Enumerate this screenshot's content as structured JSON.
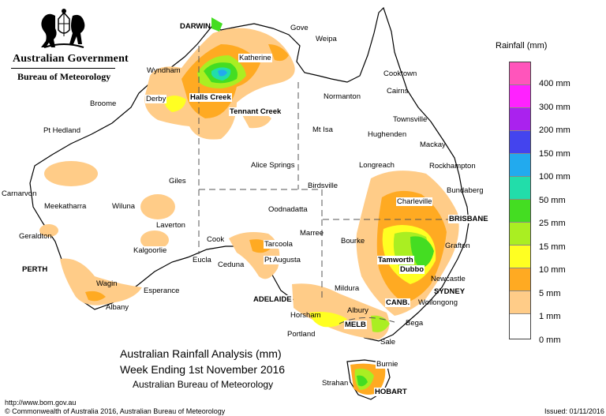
{
  "header": {
    "org_name": "Australian Government",
    "agency_name": "Bureau of Meteorology",
    "crest_icon": "commonwealth-coat-of-arms-icon"
  },
  "legend": {
    "title": "Rainfall (mm)",
    "levels": [
      {
        "label": "400 mm",
        "color": "#ff55bb"
      },
      {
        "label": "300 mm",
        "color": "#ff22ff"
      },
      {
        "label": "200 mm",
        "color": "#aa22ee"
      },
      {
        "label": "150 mm",
        "color": "#4444ee"
      },
      {
        "label": "100 mm",
        "color": "#22aaee"
      },
      {
        "label": "50 mm",
        "color": "#22ddaa"
      },
      {
        "label": "25 mm",
        "color": "#44dd22"
      },
      {
        "label": "15 mm",
        "color": "#aaee22"
      },
      {
        "label": "10 mm",
        "color": "#ffff22"
      },
      {
        "label": "5 mm",
        "color": "#ffaa22"
      },
      {
        "label": "1 mm",
        "color": "#ffcc88"
      },
      {
        "label": "0 mm",
        "color": "#ffffff"
      }
    ]
  },
  "map": {
    "land_color": "#ffffff",
    "coast_color": "#000000",
    "border_color": "#555555",
    "places": [
      "DARWIN",
      "Gove",
      "Weipa",
      "Katherine",
      "Wyndham",
      "Derby",
      "Halls Creek",
      "Broome",
      "Tennant Creek",
      "Normanton",
      "Cooktown",
      "Cairns",
      "Townsville",
      "Mt Isa",
      "Hughenden",
      "Mackay",
      "Pt Hedland",
      "Longreach",
      "Rockhampton",
      "Alice Springs",
      "Giles",
      "Carnarvon",
      "Birdsville",
      "Bundaberg",
      "Meekatharra",
      "Wiluna",
      "Oodnadatta",
      "Charleville",
      "BRISBANE",
      "Laverton",
      "Geraldton",
      "Marree",
      "Cook",
      "Bourke",
      "Grafton",
      "Tarcoola",
      "Kalgoorlie",
      "Tamworth",
      "PERTH",
      "Eucla",
      "Ceduna",
      "Pt Augusta",
      "Dubbo",
      "Newcastle",
      "SYDNEY",
      "Mildura",
      "Wagin",
      "Esperance",
      "ADELAIDE",
      "Wollongong",
      "CANB.",
      "Albany",
      "Albury",
      "Horsham",
      "Bega",
      "MELB",
      "Portland",
      "Sale",
      "Burnie",
      "Strahan",
      "HOBART"
    ]
  },
  "footer": {
    "title_line1": "Australian Rainfall Analysis (mm)",
    "title_line2": "Week Ending 1st November 2016",
    "title_line3": "Australian Bureau of Meteorology",
    "url": "http://www.bom.gov.au",
    "copyright": "© Commonwealth of Australia 2016, Australian Bureau of Meteorology",
    "issued": "Issued: 01/11/2016"
  }
}
